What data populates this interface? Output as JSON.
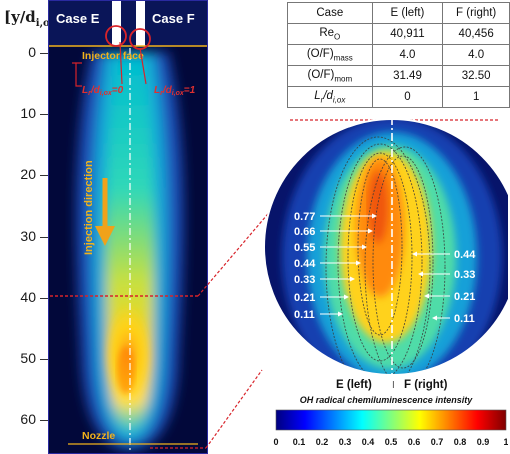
{
  "y_axis": {
    "title": "[y/d",
    "title_sub": "i,ox",
    "title_close": "]",
    "ticks": [
      "0",
      "10",
      "20",
      "30",
      "40",
      "50",
      "60"
    ]
  },
  "panel": {
    "case_left": "Case E",
    "case_right": "Case F",
    "injector_face": "Injector face",
    "lr_left": "L",
    "lr_left_sub": "r",
    "lr_left_div": "/d",
    "lr_left_sub2": "i,ox",
    "lr_left_value": "=0",
    "lr_right": "L",
    "lr_right_sub": "r",
    "lr_right_div": "/d",
    "lr_right_sub2": "i,ox",
    "lr_right_value": "=1",
    "injection_direction": "Injection direction",
    "nozzle": "Nozzle"
  },
  "table": {
    "header": [
      "Case",
      "E (left)",
      "F (right)"
    ],
    "rows": [
      {
        "label": "Re",
        "label_sub": "O",
        "left": "40,911",
        "right": "40,456"
      },
      {
        "label": "(O/F)",
        "label_sub": "mass",
        "left": "4.0",
        "right": "4.0"
      },
      {
        "label": "(O/F)",
        "label_sub": "mom",
        "left": "31.49",
        "right": "32.50"
      },
      {
        "label": "L",
        "label_sub": "r",
        "label_tail": "/d",
        "label_sub2": "i,ox",
        "left": "0",
        "right": "1"
      }
    ]
  },
  "zoom": {
    "left_labels": [
      "0.77",
      "0.66",
      "0.55",
      "0.44",
      "0.33",
      "0.21",
      "0.11"
    ],
    "right_labels": [
      "0.44",
      "0.33",
      "0.21",
      "0.11"
    ],
    "caption_left": "E (left)",
    "caption_sep": "I",
    "caption_right": "F (right)"
  },
  "colorbar": {
    "title": "OH radical chemiluminescence intensity",
    "ticks": [
      "0",
      "0.1",
      "0.2",
      "0.3",
      "0.4",
      "0.5",
      "0.6",
      "0.7",
      "0.8",
      "0.9",
      "1"
    ],
    "colormap": [
      "#00007f",
      "#0000ff",
      "#007fff",
      "#00ffff",
      "#7fff7f",
      "#ffff00",
      "#ff7f00",
      "#ff0000",
      "#7f0000"
    ]
  },
  "colors": {
    "frame_border": "#2a2aa0",
    "highlight": "#d8232a",
    "annotation": "#f2b21b"
  }
}
